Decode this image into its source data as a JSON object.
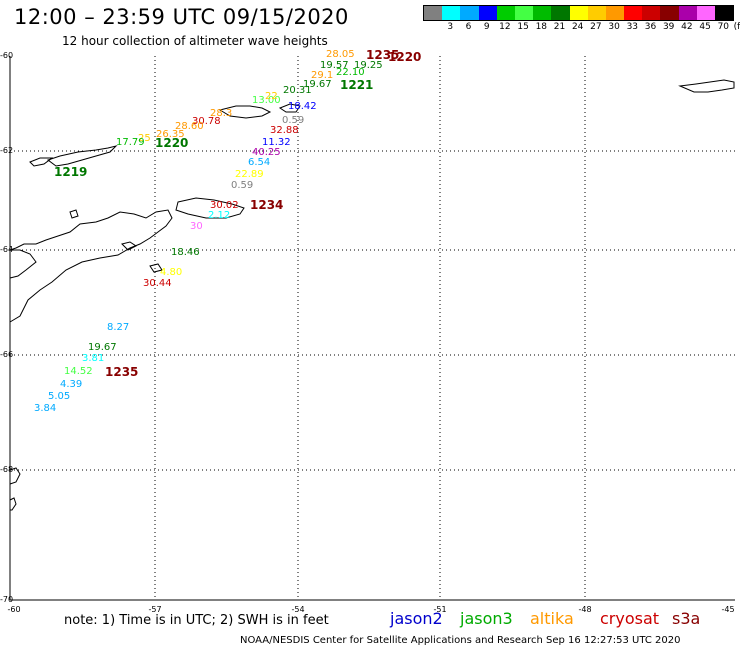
{
  "header": {
    "title": "12:00 – 23:59 UTC 09/15/2020",
    "subtitle": "12 hour collection of altimeter wave heights"
  },
  "legend": {
    "unit": "(ft)",
    "swatches": [
      {
        "color": "#808080",
        "label": ""
      },
      {
        "color": "#00ffff",
        "label": "3"
      },
      {
        "color": "#00aaff",
        "label": "6"
      },
      {
        "color": "#0000ff",
        "label": "9"
      },
      {
        "color": "#00cc00",
        "label": "12"
      },
      {
        "color": "#44ff44",
        "label": "15"
      },
      {
        "color": "#00bb00",
        "label": "18"
      },
      {
        "color": "#007700",
        "label": "21"
      },
      {
        "color": "#ffff00",
        "label": "24"
      },
      {
        "color": "#ffcc00",
        "label": "27"
      },
      {
        "color": "#ff9900",
        "label": "30"
      },
      {
        "color": "#ff0000",
        "label": "33"
      },
      {
        "color": "#cc0000",
        "label": "36"
      },
      {
        "color": "#880000",
        "label": "39"
      },
      {
        "color": "#aa00aa",
        "label": "42"
      },
      {
        "color": "#ff66ff",
        "label": "45"
      },
      {
        "color": "#000000",
        "label": "70"
      }
    ]
  },
  "axes": {
    "lat_labels": [
      "-60",
      "-62",
      "-64",
      "-66",
      "-68",
      "-70"
    ],
    "lon_labels": [
      "-60",
      "-57",
      "-54",
      "-51",
      "-48",
      "-45"
    ],
    "grid": "dotted"
  },
  "observations": [
    {
      "text": "28.05",
      "color": "#ff9900"
    },
    {
      "text": "1235",
      "color": "#880000",
      "pass": true
    },
    {
      "text": "1220",
      "color": "#880000",
      "pass": true
    },
    {
      "text": "19.57",
      "color": "#007700"
    },
    {
      "text": "19.25",
      "color": "#007700"
    },
    {
      "text": "29.1",
      "color": "#ff9900"
    },
    {
      "text": "22.10",
      "color": "#00bb00"
    },
    {
      "text": "20.31",
      "color": "#007700"
    },
    {
      "text": "19.67",
      "color": "#007700"
    },
    {
      "text": "1221",
      "color": "#007700",
      "pass": true
    },
    {
      "text": "13.00",
      "color": "#44ff44"
    },
    {
      "text": "22",
      "color": "#ffcc00"
    },
    {
      "text": "18.42",
      "color": "#0000ff"
    },
    {
      "text": "28.3",
      "color": "#ff9900"
    },
    {
      "text": "30.78",
      "color": "#cc0000"
    },
    {
      "text": "0.59",
      "color": "#808080"
    },
    {
      "text": "28.60",
      "color": "#ff9900"
    },
    {
      "text": "26.35",
      "color": "#ff9900"
    },
    {
      "text": "32.88",
      "color": "#cc0000"
    },
    {
      "text": "25",
      "color": "#ffcc00"
    },
    {
      "text": "17.79",
      "color": "#00bb00"
    },
    {
      "text": "1220",
      "color": "#007700",
      "pass": true
    },
    {
      "text": "11.32",
      "color": "#0000ff"
    },
    {
      "text": "40.25",
      "color": "#aa00aa"
    },
    {
      "text": "6.54",
      "color": "#00aaff"
    },
    {
      "text": "1219",
      "color": "#007700",
      "pass": true
    },
    {
      "text": "22.89",
      "color": "#ffff00"
    },
    {
      "text": "0.59",
      "color": "#808080"
    },
    {
      "text": "30.02",
      "color": "#cc0000"
    },
    {
      "text": "1234",
      "color": "#880000",
      "pass": true
    },
    {
      "text": "2.12",
      "color": "#00ffff"
    },
    {
      "text": "30",
      "color": "#ff66ff"
    },
    {
      "text": "18.46",
      "color": "#007700"
    },
    {
      "text": "4.80",
      "color": "#ffff00"
    },
    {
      "text": "30.44",
      "color": "#cc0000"
    },
    {
      "text": "8.27",
      "color": "#00aaff"
    },
    {
      "text": "19.67",
      "color": "#007700"
    },
    {
      "text": "3.81",
      "color": "#00ffff"
    },
    {
      "text": "14.52",
      "color": "#44ff44"
    },
    {
      "text": "1235",
      "color": "#880000",
      "pass": true
    },
    {
      "text": "4.39",
      "color": "#00aaff"
    },
    {
      "text": "5.05",
      "color": "#00aaff"
    },
    {
      "text": "3.84",
      "color": "#00aaff"
    }
  ],
  "note": "note: 1) Time is in UTC; 2) SWH is in feet",
  "satellites": [
    {
      "name": "jason2",
      "color": "#0000cc"
    },
    {
      "name": "jason3",
      "color": "#00aa00"
    },
    {
      "name": "altika",
      "color": "#ff9900"
    },
    {
      "name": "cryosat",
      "color": "#cc0000"
    },
    {
      "name": "s3a",
      "color": "#880000"
    }
  ],
  "footer": "NOAA/NESDIS Center for Satellite Applications and Research   Sep 16 12:27:53 UTC 2020"
}
